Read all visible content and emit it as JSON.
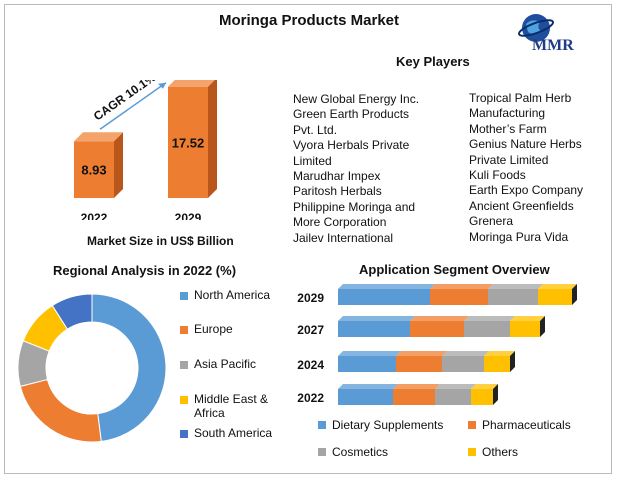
{
  "title": "Moringa Products Market",
  "logo": {
    "text": "MMR",
    "icon": "globe-icon"
  },
  "key_players": {
    "title": "Key Players",
    "col1": [
      "New Global Energy Inc.",
      "Green Earth Products",
      "Pvt. Ltd.",
      "Vyora Herbals Private",
      "Limited",
      "Marudhar Impex",
      "Paritosh Herbals",
      "Philippine Moringa and",
      "More Corporation",
      "Jailev International"
    ],
    "col2": [
      "Tropical Palm Herb",
      "Manufacturing",
      "Mother’s Farm",
      "Genius Nature Herbs",
      "Private Limited",
      "Kuli Foods",
      "Earth Expo Company",
      "Ancient Greenfields",
      "Grenera",
      "Moringa Pura Vida"
    ]
  },
  "market_size": {
    "cagr_label": "CAGR 10.1%",
    "subtitle": "Market Size in US$ Billion",
    "bar_color": "#ED7D31",
    "bar_side_color": "#B8561C",
    "bar_top_color": "#F4A46B"
  },
  "regional": {
    "title": "Regional Analysis in 2022 (%)"
  },
  "application": {
    "title": "Application Segment Overview"
  },
  "chart_data": [
    {
      "type": "bar",
      "categories": [
        "2022",
        "2029"
      ],
      "values": [
        8.93,
        17.52
      ],
      "xlabel": "Market Size in US$ Billion",
      "ylabel": ""
    },
    {
      "type": "pie",
      "title": "Regional Analysis in 2022 (%)",
      "donut": true,
      "legend": "right",
      "labels": [
        "North America",
        "Europe",
        "Asia Pacific",
        "Middle East & Africa",
        "South America"
      ],
      "values": [
        48,
        23,
        10,
        10,
        9
      ],
      "colors": [
        "#5B9BD5",
        "#ED7D31",
        "#A5A5A5",
        "#FFC000",
        "#4472C4"
      ]
    },
    {
      "type": "bar",
      "orientation": "horizontal",
      "stacked": true,
      "title": "Application Segment Overview",
      "categories": [
        "2029",
        "2027",
        "2024",
        "2022"
      ],
      "legend": "bottom",
      "series": [
        {
          "name": "Dietary Supplements",
          "values": [
            92,
            72,
            58,
            55
          ],
          "color": "#5B9BD5"
        },
        {
          "name": "Pharmaceuticals",
          "values": [
            58,
            54,
            46,
            42
          ],
          "color": "#ED7D31"
        },
        {
          "name": "Cosmetics",
          "values": [
            50,
            46,
            42,
            36
          ],
          "color": "#A5A5A5"
        },
        {
          "name": "Others",
          "values": [
            34,
            30,
            26,
            22
          ],
          "color": "#FFC000"
        }
      ]
    }
  ]
}
